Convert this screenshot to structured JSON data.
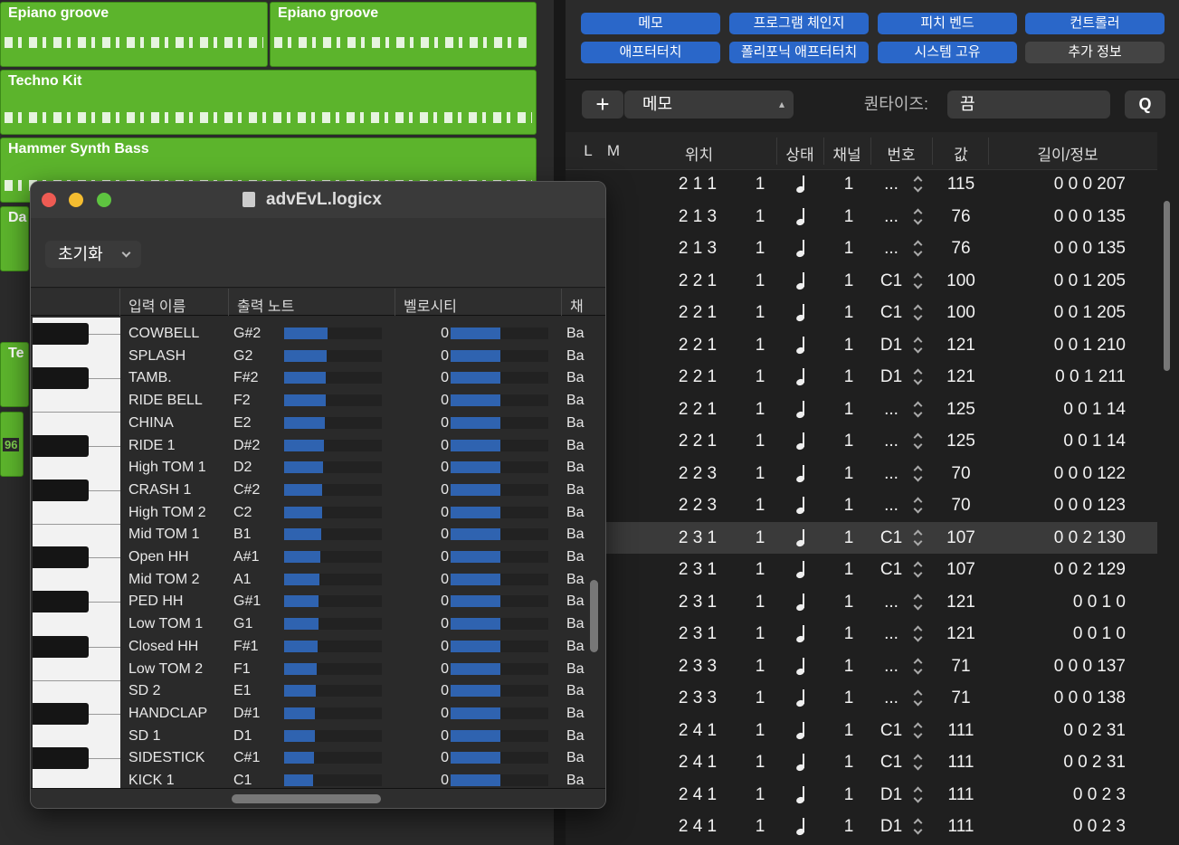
{
  "tracks": {
    "regions": [
      "Epiano groove",
      "Epiano groove",
      "Techno Kit",
      "Hammer Synth Bass",
      "Da",
      "Te",
      "96"
    ]
  },
  "event_list": {
    "buttons": [
      "메모",
      "프로그램 체인지",
      "피치 벤드",
      "컨트롤러",
      "애프터터치",
      "폴리포닉 애프터터치",
      "시스템 고유",
      "추가 정보"
    ],
    "toolbar": {
      "add": "+",
      "type": "메모",
      "quantize_label": "퀀타이즈:",
      "quantize": "끔",
      "q": "Q"
    },
    "columns": [
      "L",
      "M",
      "위치",
      "상태",
      "채널",
      "번호",
      "값",
      "길이/정보"
    ],
    "rows": [
      [
        "2 1 1",
        "1",
        "1",
        "...",
        "115",
        "0 0 0 207"
      ],
      [
        "2 1 3",
        "1",
        "1",
        "...",
        "76",
        "0 0 0 135"
      ],
      [
        "2 1 3",
        "1",
        "1",
        "...",
        "76",
        "0 0 0 135"
      ],
      [
        "2 2 1",
        "1",
        "1",
        "C1",
        "100",
        "0 0 1 205"
      ],
      [
        "2 2 1",
        "1",
        "1",
        "C1",
        "100",
        "0 0 1 205"
      ],
      [
        "2 2 1",
        "1",
        "1",
        "D1",
        "121",
        "0 0 1 210"
      ],
      [
        "2 2 1",
        "1",
        "1",
        "D1",
        "121",
        "0 0 1 211"
      ],
      [
        "2 2 1",
        "1",
        "1",
        "...",
        "125",
        "0 0 1 14"
      ],
      [
        "2 2 1",
        "1",
        "1",
        "...",
        "125",
        "0 0 1 14"
      ],
      [
        "2 2 3",
        "1",
        "1",
        "...",
        "70",
        "0 0 0 122"
      ],
      [
        "2 2 3",
        "1",
        "1",
        "...",
        "70",
        "0 0 0 123"
      ],
      [
        "2 3 1",
        "1",
        "1",
        "C1",
        "107",
        "0 0 2 130"
      ],
      [
        "2 3 1",
        "1",
        "1",
        "C1",
        "107",
        "0 0 2 129"
      ],
      [
        "2 3 1",
        "1",
        "1",
        "...",
        "121",
        "0 0 1 0"
      ],
      [
        "2 3 1",
        "1",
        "1",
        "...",
        "121",
        "0 0 1 0"
      ],
      [
        "2 3 3",
        "1",
        "1",
        "...",
        "71",
        "0 0 0 137"
      ],
      [
        "2 3 3",
        "1",
        "1",
        "...",
        "71",
        "0 0 0 138"
      ],
      [
        "2 4 1",
        "1",
        "1",
        "C1",
        "111",
        "0 0 2 31"
      ],
      [
        "2 4 1",
        "1",
        "1",
        "C1",
        "111",
        "0 0 2 31"
      ],
      [
        "2 4 1",
        "1",
        "1",
        "D1",
        "111",
        "0 0 2 3"
      ],
      [
        "2 4 1",
        "1",
        "1",
        "D1",
        "111",
        "0 0 2 3"
      ]
    ]
  },
  "mapper": {
    "title": "advEvL.logicx",
    "reset": "초기화",
    "columns": [
      "입력 이름",
      "출력 노트",
      "벨로시티",
      "채"
    ],
    "rows": [
      [
        "COWBELL",
        "G#2",
        "0",
        "Ba"
      ],
      [
        "SPLASH",
        "G2",
        "0",
        "Ba"
      ],
      [
        "TAMB.",
        "F#2",
        "0",
        "Ba"
      ],
      [
        "RIDE BELL",
        "F2",
        "0",
        "Ba"
      ],
      [
        "CHINA",
        "E2",
        "0",
        "Ba"
      ],
      [
        "RIDE 1",
        "D#2",
        "0",
        "Ba"
      ],
      [
        "High TOM 1",
        "D2",
        "0",
        "Ba"
      ],
      [
        "CRASH 1",
        "C#2",
        "0",
        "Ba"
      ],
      [
        "High TOM 2",
        "C2",
        "0",
        "Ba"
      ],
      [
        "Mid TOM 1",
        "B1",
        "0",
        "Ba"
      ],
      [
        "Open HH",
        "A#1",
        "0",
        "Ba"
      ],
      [
        "Mid TOM 2",
        "A1",
        "0",
        "Ba"
      ],
      [
        "PED HH",
        "G#1",
        "0",
        "Ba"
      ],
      [
        "Low TOM 1",
        "G1",
        "0",
        "Ba"
      ],
      [
        "Closed HH",
        "F#1",
        "0",
        "Ba"
      ],
      [
        "Low TOM 2",
        "F1",
        "0",
        "Ba"
      ],
      [
        "SD 2",
        "E1",
        "0",
        "Ba"
      ],
      [
        "HANDCLAP",
        "D#1",
        "0",
        "Ba"
      ],
      [
        "SD 1",
        "D1",
        "0",
        "Ba"
      ],
      [
        "SIDESTICK",
        "C#1",
        "0",
        "Ba"
      ],
      [
        "KICK 1",
        "C1",
        "0",
        "Ba"
      ]
    ]
  }
}
